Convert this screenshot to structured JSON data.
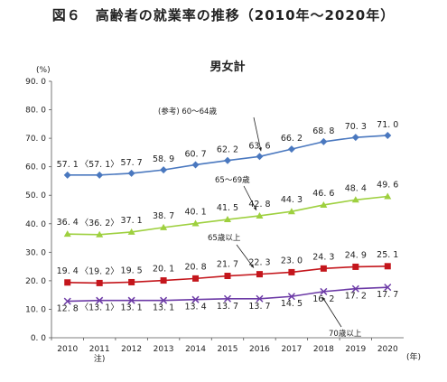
{
  "figure_title": "図６　高齢者の就業率の推移（2010年～2020年）",
  "chart_data": {
    "type": "line",
    "title": "男女計",
    "y_unit": "(%)",
    "x_unit": "(年)",
    "ylim": [
      0,
      90
    ],
    "y_ticks": [
      "0. 0",
      "10. 0",
      "20. 0",
      "30. 0",
      "40. 0",
      "50. 0",
      "60. 0",
      "70. 0",
      "80. 0",
      "90. 0"
    ],
    "categories": [
      "2010",
      "2011",
      "2012",
      "2013",
      "2014",
      "2015",
      "2016",
      "2017",
      "2018",
      "2019",
      "2020"
    ],
    "category_note": {
      "index": 1,
      "text": "注)"
    },
    "grid": false,
    "series": [
      {
        "color": "#4a78bf",
        "marker": "diamond",
        "values": [
          57.1,
          57.1,
          57.7,
          58.9,
          60.7,
          62.2,
          63.6,
          66.2,
          68.8,
          70.3,
          71.0
        ],
        "labels": [
          "57. 1",
          "〈57. 1〉",
          "57. 7",
          "58. 9",
          "60. 7",
          "62. 2",
          "63. 6",
          "66. 2",
          "68. 8",
          "70. 3",
          "71. 0"
        ],
        "annotation": "(参考) 60～64歳"
      },
      {
        "color": "#9ed03f",
        "marker": "triangle",
        "values": [
          36.4,
          36.2,
          37.1,
          38.7,
          40.1,
          41.5,
          42.8,
          44.3,
          46.6,
          48.4,
          49.6
        ],
        "labels": [
          "36. 4",
          "〈36. 2〉",
          "37. 1",
          "38. 7",
          "40. 1",
          "41. 5",
          "42. 8",
          "44. 3",
          "46. 6",
          "48. 4",
          "49. 6"
        ],
        "annotation": "65～69歳"
      },
      {
        "color": "#c4161c",
        "marker": "square",
        "values": [
          19.4,
          19.2,
          19.5,
          20.1,
          20.8,
          21.7,
          22.3,
          23.0,
          24.3,
          24.9,
          25.1
        ],
        "labels": [
          "19. 4",
          "〈19. 2〉",
          "19. 5",
          "20. 1",
          "20. 8",
          "21. 7",
          "22. 3",
          "23. 0",
          "24. 3",
          "24. 9",
          "25. 1"
        ],
        "annotation": "65歳以上"
      },
      {
        "color": "#6c3aa6",
        "marker": "x",
        "values": [
          12.8,
          13.1,
          13.1,
          13.1,
          13.4,
          13.7,
          13.7,
          14.5,
          16.2,
          17.2,
          17.7
        ],
        "labels": [
          "12. 8",
          "〈13. 1〉",
          "13. 1",
          "13. 1",
          "13. 4",
          "13. 7",
          "13. 7",
          "14. 5",
          "16. 2",
          "17. 2",
          "17. 7"
        ],
        "annotation": "70歳以上"
      }
    ]
  }
}
